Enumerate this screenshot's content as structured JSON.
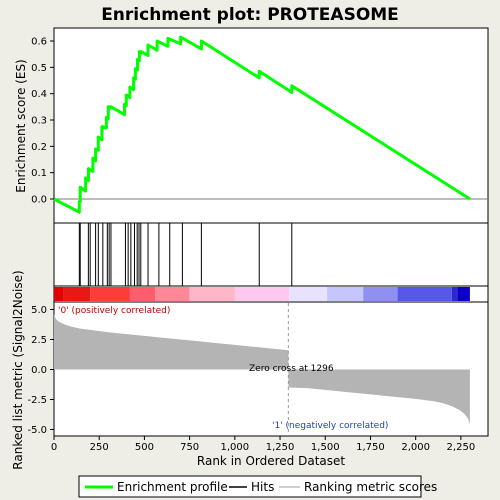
{
  "chart_data": {
    "type": "line",
    "title": "Enrichment plot: PROTEASOME",
    "enrichment_panel": {
      "ylabel": "Enrichment score (ES)",
      "ylim": [
        -0.08,
        0.66
      ],
      "yticks": [
        "0.0",
        "0.1",
        "0.2",
        "0.3",
        "0.4",
        "0.5",
        "0.6"
      ],
      "series": [
        {
          "name": "Enrichment profile",
          "color": "#00ff00",
          "x": [
            0,
            140,
            140,
            145,
            145,
            175,
            175,
            190,
            190,
            215,
            215,
            230,
            230,
            245,
            245,
            265,
            265,
            290,
            290,
            300,
            300,
            310,
            310,
            315,
            315,
            390,
            390,
            400,
            400,
            420,
            420,
            440,
            440,
            450,
            450,
            462,
            462,
            472,
            472,
            482,
            482,
            520,
            520,
            570,
            570,
            630,
            630,
            700,
            700,
            815,
            815,
            1135,
            1135,
            1315,
            1315,
            2300
          ],
          "y": [
            0.0,
            -0.05,
            -0.01,
            -0.01,
            0.045,
            0.03,
            0.08,
            0.07,
            0.115,
            0.105,
            0.155,
            0.145,
            0.19,
            0.185,
            0.235,
            0.225,
            0.275,
            0.27,
            0.31,
            0.305,
            0.35,
            0.345,
            0.35,
            0.35,
            0.35,
            0.32,
            0.36,
            0.355,
            0.395,
            0.385,
            0.425,
            0.415,
            0.46,
            0.455,
            0.495,
            0.49,
            0.53,
            0.525,
            0.56,
            0.555,
            0.56,
            0.545,
            0.585,
            0.565,
            0.6,
            0.58,
            0.61,
            0.59,
            0.615,
            0.57,
            0.6,
            0.46,
            0.485,
            0.405,
            0.43,
            0.0
          ]
        }
      ]
    },
    "hits_panel": {
      "legend_label": "Hits",
      "hit_ranks": [
        140,
        145,
        190,
        200,
        230,
        245,
        270,
        295,
        305,
        315,
        395,
        410,
        425,
        445,
        460,
        470,
        480,
        520,
        580,
        640,
        710,
        815,
        1135,
        1315
      ]
    },
    "ranked_panel": {
      "ylabel": "Ranked list metric (Signal2Noise)",
      "xlabel": "Rank in Ordered Dataset",
      "ylim": [
        -5.0,
        5.0
      ],
      "xlim": [
        0,
        2400
      ],
      "yticks": [
        "5.0",
        "2.5",
        "0.0",
        "-2.5",
        "-5.0"
      ],
      "xticks": [
        "0",
        "250",
        "500",
        "750",
        "1,000",
        "1,250",
        "1,500",
        "1,750",
        "2,000",
        "2,250"
      ],
      "n_ranks": 2300,
      "series": [
        {
          "name": "Ranking metric scores",
          "color": "#c0c0c0",
          "x": [
            0,
            10,
            30,
            60,
            100,
            150,
            200,
            300,
            400,
            500,
            600,
            700,
            800,
            900,
            1000,
            1100,
            1200,
            1296,
            1296,
            1400,
            1500,
            1600,
            1700,
            1800,
            1900,
            2000,
            2100,
            2150,
            2200,
            2240,
            2270,
            2290,
            2300
          ],
          "y": [
            4.6,
            4.2,
            3.95,
            3.75,
            3.55,
            3.4,
            3.3,
            3.1,
            2.95,
            2.8,
            2.65,
            2.5,
            2.35,
            2.2,
            2.05,
            1.9,
            1.75,
            1.6,
            -1.5,
            -1.55,
            -1.7,
            -1.85,
            -2.0,
            -2.15,
            -2.3,
            -2.45,
            -2.65,
            -2.8,
            -3.05,
            -3.35,
            -3.7,
            -4.1,
            -4.6
          ]
        }
      ],
      "zero_cross_label": "Zero cross at 1296",
      "zero_cross_rank": 1296,
      "positive_label": "'0' (positively correlated)",
      "negative_label": "'1' (negatively correlated)",
      "heat_colors": [
        "#e00000",
        "#e81818",
        "#ff3c3c",
        "#ff5c6c",
        "#ff8898",
        "#ffb6c6",
        "#ffc8ee",
        "#e8e2ff",
        "#c6c6ff",
        "#9090f0",
        "#5858e8",
        "#2a2ad0",
        "#0c00c8"
      ],
      "heat_bounds": [
        0,
        50,
        200,
        420,
        560,
        750,
        1000,
        1300,
        1510,
        1710,
        1900,
        2200,
        2230,
        2300
      ]
    },
    "legend": {
      "placement": "bottom",
      "entries": [
        "Enrichment profile",
        "Hits",
        "Ranking metric scores"
      ]
    }
  }
}
